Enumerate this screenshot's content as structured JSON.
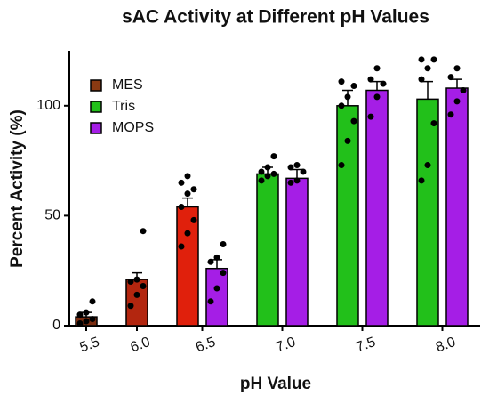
{
  "chart_data": {
    "type": "bar",
    "title": "sAC Activity at Different pH Values",
    "xlabel": "pH Value",
    "ylabel": "Percent Activity (%)",
    "categories": [
      "5.5",
      "6.0",
      "6.5",
      "7.0",
      "7.5",
      "8.0"
    ],
    "series": [
      {
        "name": "MES",
        "color": "#8a3a12",
        "colors": [
          "#7a2c10",
          "#b3260f",
          "#e0200c",
          null,
          null,
          null
        ],
        "values": [
          4,
          21,
          54,
          null,
          null,
          null
        ],
        "errors": [
          2,
          3,
          4,
          null,
          null,
          null
        ],
        "points": [
          [
            1,
            2,
            3,
            5,
            6,
            11
          ],
          [
            9,
            14,
            18,
            20,
            21,
            43
          ],
          [
            36,
            42,
            48,
            54,
            60,
            62,
            65,
            68
          ],
          null,
          null,
          null
        ]
      },
      {
        "name": "Tris",
        "color": "#22c01a",
        "values": [
          null,
          null,
          null,
          69,
          100,
          103
        ],
        "errors": [
          null,
          null,
          null,
          3,
          7,
          8
        ],
        "points": [
          null,
          null,
          null,
          [
            66,
            68,
            69,
            70,
            72,
            77
          ],
          [
            73,
            84,
            93,
            100,
            104,
            109,
            111
          ],
          [
            66,
            73,
            92,
            112,
            117,
            121,
            121
          ]
        ]
      },
      {
        "name": "MOPS",
        "color": "#a51ee6",
        "values": [
          null,
          null,
          26,
          67,
          107,
          108
        ],
        "errors": [
          null,
          null,
          4,
          4,
          4,
          4
        ],
        "points": [
          null,
          null,
          [
            11,
            17,
            24,
            29,
            31,
            37
          ],
          [
            65,
            66,
            70,
            72,
            73
          ],
          [
            95,
            104,
            110,
            112,
            117
          ],
          [
            96,
            102,
            107,
            113,
            117
          ]
        ]
      }
    ],
    "ylim": [
      0,
      125
    ],
    "yticks": [
      0,
      50,
      100
    ],
    "legend": "upper left"
  }
}
